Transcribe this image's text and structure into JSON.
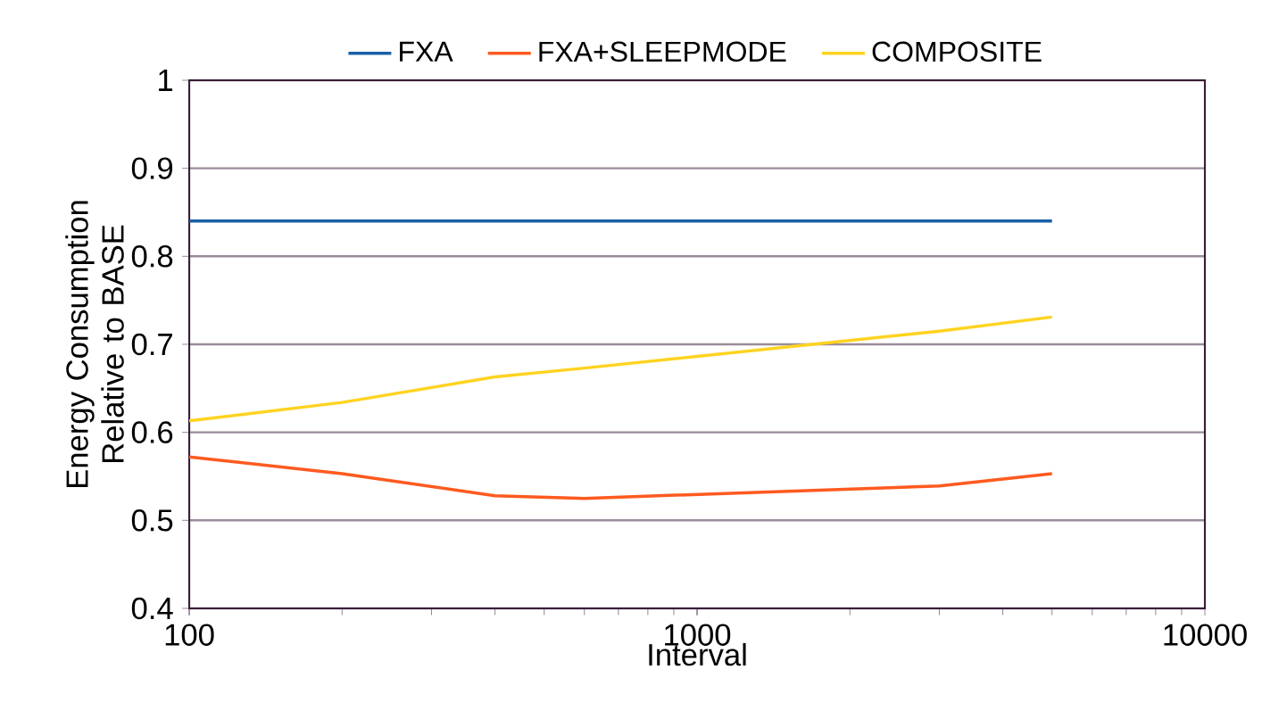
{
  "chart_data": {
    "type": "line",
    "xlabel": "Interval",
    "ylabel": "Energy Consumption Relative to BASE",
    "x": [
      100,
      200,
      400,
      600,
      3000,
      5000
    ],
    "series": [
      {
        "name": "FXA",
        "color": "#1a5fa8",
        "values": [
          0.84,
          0.84,
          0.84,
          0.84,
          0.84,
          0.84
        ]
      },
      {
        "name": "FXA+SLEEPMODE",
        "color": "#ff5a1f",
        "values": [
          0.572,
          0.553,
          0.528,
          0.525,
          0.539,
          0.553
        ]
      },
      {
        "name": "COMPOSITE",
        "color": "#ffd320",
        "values": [
          0.613,
          0.634,
          0.663,
          0.673,
          0.715,
          0.731
        ]
      }
    ],
    "log": "x",
    "xlim": [
      100,
      10000
    ],
    "xticks": [
      100,
      1000,
      10000
    ],
    "ylim": [
      0.4,
      1
    ],
    "yticks": [
      0.4,
      0.5,
      0.6,
      0.7,
      0.8,
      0.9,
      1
    ],
    "grid": "y",
    "legend": "top",
    "line_style": "solid"
  }
}
